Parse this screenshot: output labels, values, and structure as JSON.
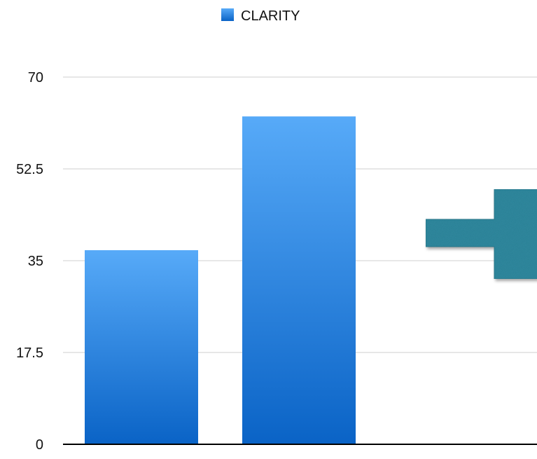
{
  "chart_data": {
    "type": "bar",
    "categories": [
      "",
      ""
    ],
    "series": [
      {
        "name": "CLARITY",
        "values": [
          37,
          62.5
        ],
        "color": "#3a92ec"
      }
    ],
    "y_ticks": [
      "0",
      "17.5",
      "35",
      "52.5",
      "70"
    ],
    "ylim": [
      0,
      70
    ],
    "grid": true,
    "legend_position": "top-center",
    "xlabel": "",
    "ylabel": "",
    "annotations": [
      {
        "kind": "arrow",
        "direction": "right",
        "color": "#2f8aa0",
        "icon": "arrow-right-icon"
      }
    ]
  }
}
